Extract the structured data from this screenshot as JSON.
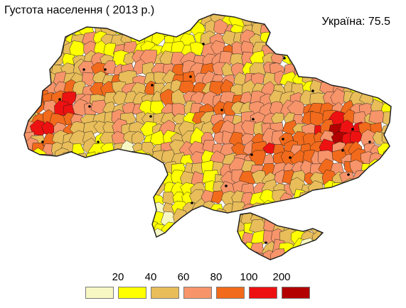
{
  "title": "Густота населення ( 2013 р.)",
  "national_value": "Україна: 75.5",
  "legend": {
    "breaks": [
      "20",
      "40",
      "60",
      "80",
      "100",
      "200"
    ],
    "colors": [
      "#f7f7c4",
      "#ffff00",
      "#e8bd5a",
      "#f7946a",
      "#f26a1b",
      "#ee1111",
      "#b30000"
    ]
  },
  "colors": {
    "border": "#1a1a1a",
    "city_marker": "#000000",
    "background": "#ffffff"
  }
}
